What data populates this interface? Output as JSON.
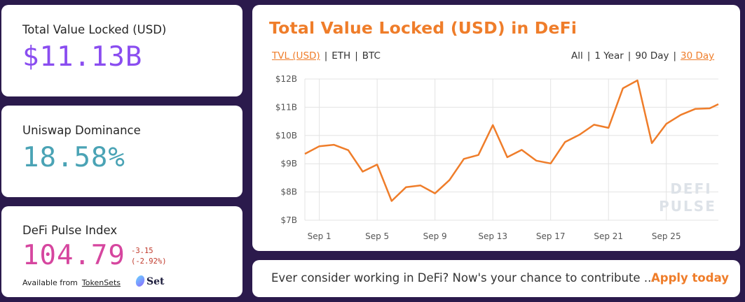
{
  "tvl_card": {
    "label": "Total Value Locked (USD)",
    "value": "$11.13B",
    "value_color": "#8a4df0"
  },
  "uniswap_card": {
    "label": "Uniswap Dominance",
    "value": "18.58%",
    "value_color": "#4aa3b5"
  },
  "dpi_card": {
    "label": "DeFi Pulse Index",
    "value": "104.79",
    "value_color": "#d6469f",
    "change_abs": "-3.15",
    "change_pct": "(-2.92%)",
    "available_from": "Available from",
    "tokensets_link": "TokenSets",
    "set_logo": "Set"
  },
  "chart_card": {
    "title": "Total Value Locked (USD) in DeFi",
    "currency_tabs": [
      "TVL (USD)",
      "ETH",
      "BTC"
    ],
    "active_currency": "TVL (USD)",
    "range_tabs": [
      "All",
      "1 Year",
      "90 Day",
      "30 Day"
    ],
    "active_range": "30 Day",
    "watermark": [
      "DEFI",
      "PULSE"
    ]
  },
  "promo": {
    "text": "Ever consider working in DeFi? Now's your chance to contribute ...",
    "cta": "Apply today"
  },
  "colors": {
    "accent": "#ef7d2a",
    "background": "#2b1a4c",
    "card": "#ffffff"
  },
  "chart_data": {
    "type": "line",
    "x": [
      0,
      1,
      2,
      3,
      4,
      5,
      6,
      7,
      8,
      9,
      10,
      11,
      12,
      13,
      14,
      15,
      16,
      17,
      18,
      19,
      20,
      21,
      22,
      23,
      24,
      25,
      26,
      27,
      28,
      28.6
    ],
    "x_tick_labels": [
      "Sep 1",
      "Sep 5",
      "Sep 9",
      "Sep 13",
      "Sep 17",
      "Sep 21",
      "Sep 25"
    ],
    "x_tick_positions": [
      1,
      5,
      9,
      13,
      17,
      21,
      25
    ],
    "values": [
      9.35,
      9.62,
      9.67,
      9.48,
      8.72,
      8.97,
      7.68,
      8.17,
      8.23,
      7.95,
      8.42,
      9.17,
      9.31,
      10.37,
      9.23,
      9.49,
      9.11,
      9.01,
      9.77,
      10.03,
      10.38,
      10.27,
      11.67,
      11.95,
      9.73,
      10.41,
      10.73,
      10.94,
      10.96,
      11.11
    ],
    "y_tick_labels": [
      "$7B",
      "$8B",
      "$9B",
      "$10B",
      "$11B",
      "$12B"
    ],
    "y_ticks": [
      7,
      8,
      9,
      10,
      11,
      12
    ],
    "ylim": [
      7,
      12
    ],
    "line_color": "#ef7d2a",
    "grid": true
  }
}
